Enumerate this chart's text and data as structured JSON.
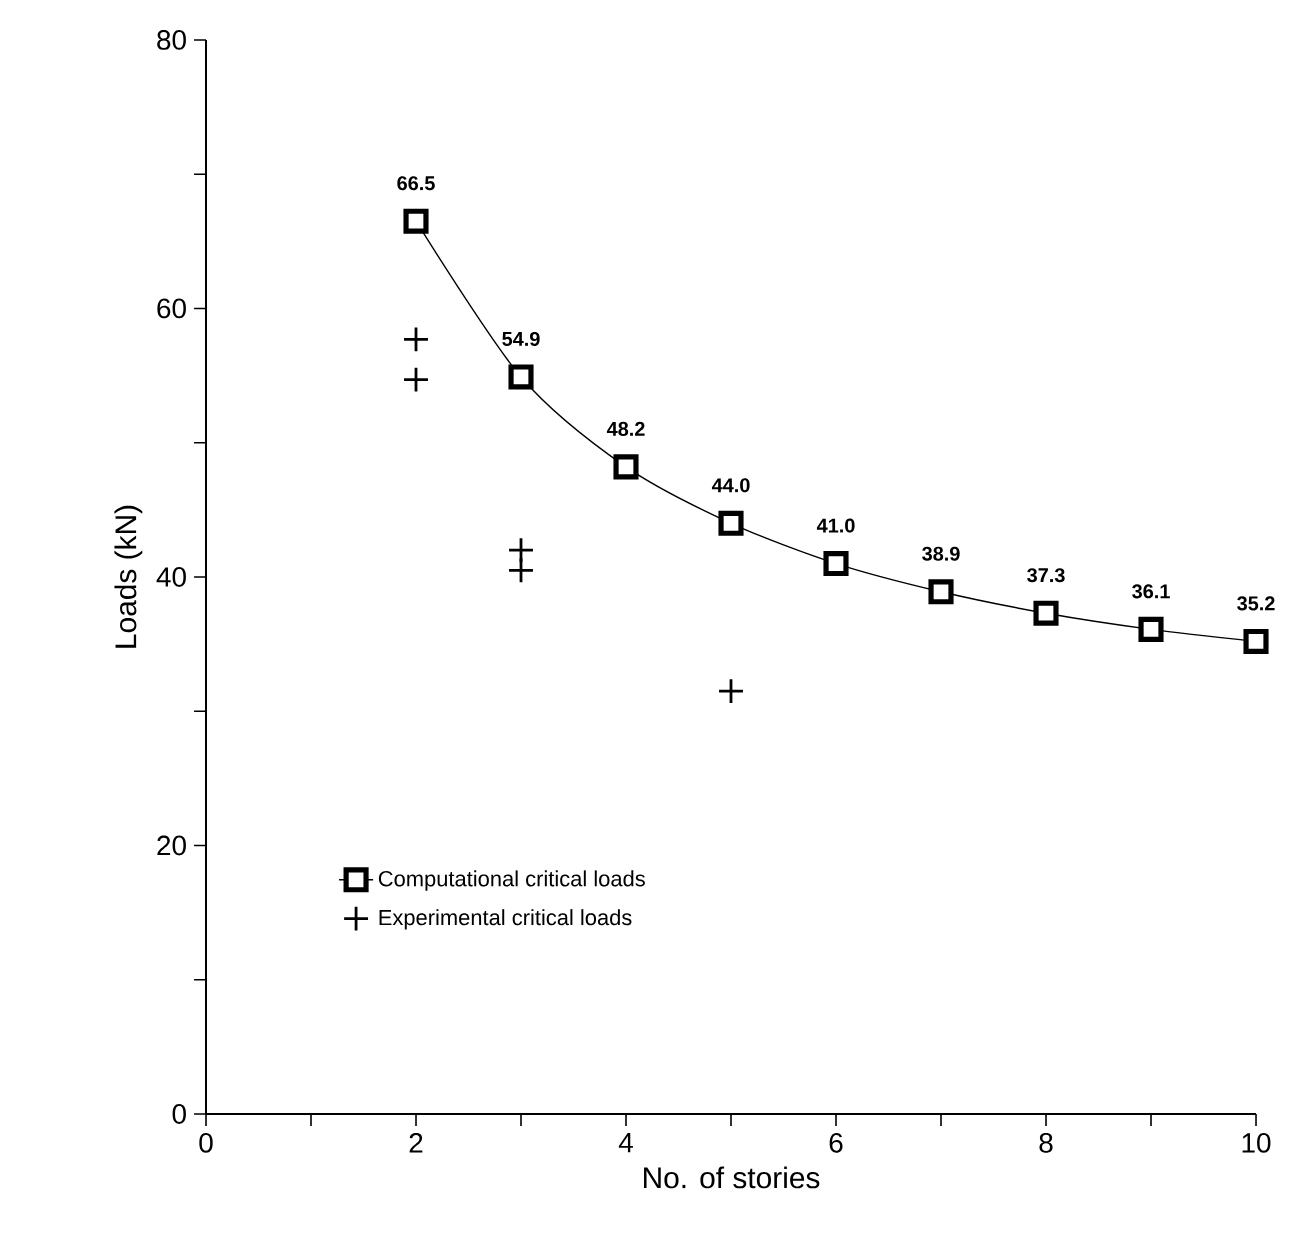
{
  "chart_data": {
    "type": "line",
    "xlabel": "No. of stories",
    "ylabel": "Loads (kN)",
    "series": [
      {
        "name": "Computational critical loads",
        "color": "#000000",
        "marker": "square",
        "line_style": "solid",
        "x": [
          2,
          3,
          4,
          5,
          6,
          7,
          8,
          9,
          10
        ],
        "values": [
          66.5,
          54.9,
          48.2,
          44.0,
          41.0,
          38.9,
          37.3,
          36.1,
          35.2
        ],
        "value_labels": [
          "66.5",
          "54.9",
          "48.2",
          "44.0",
          "41.0",
          "38.9",
          "37.3",
          "36.1",
          "35.2"
        ]
      },
      {
        "name": "Experimental critical loads",
        "type": "scatter",
        "color": "#000000",
        "marker": "cross",
        "x": [
          2,
          2,
          3,
          3,
          5
        ],
        "values": [
          57.7,
          54.7,
          42.0,
          40.5,
          31.5
        ]
      }
    ],
    "xlim": [
      0,
      10
    ],
    "ylim": [
      0,
      80
    ],
    "xticks": [
      0,
      {
        "value": 1,
        "label": null
      },
      2,
      {
        "value": 3,
        "label": null
      },
      4,
      {
        "value": 5,
        "label": null
      },
      6,
      {
        "value": 7,
        "label": null
      },
      8,
      {
        "value": 9,
        "label": null
      },
      10
    ],
    "yticks": [
      0,
      {
        "value": 10,
        "label": null
      },
      20,
      {
        "value": 30,
        "label": null
      },
      40,
      {
        "value": 50,
        "label": null
      },
      60,
      {
        "value": 70,
        "label": null
      },
      80
    ],
    "grid": false,
    "legend": "bottom left"
  }
}
